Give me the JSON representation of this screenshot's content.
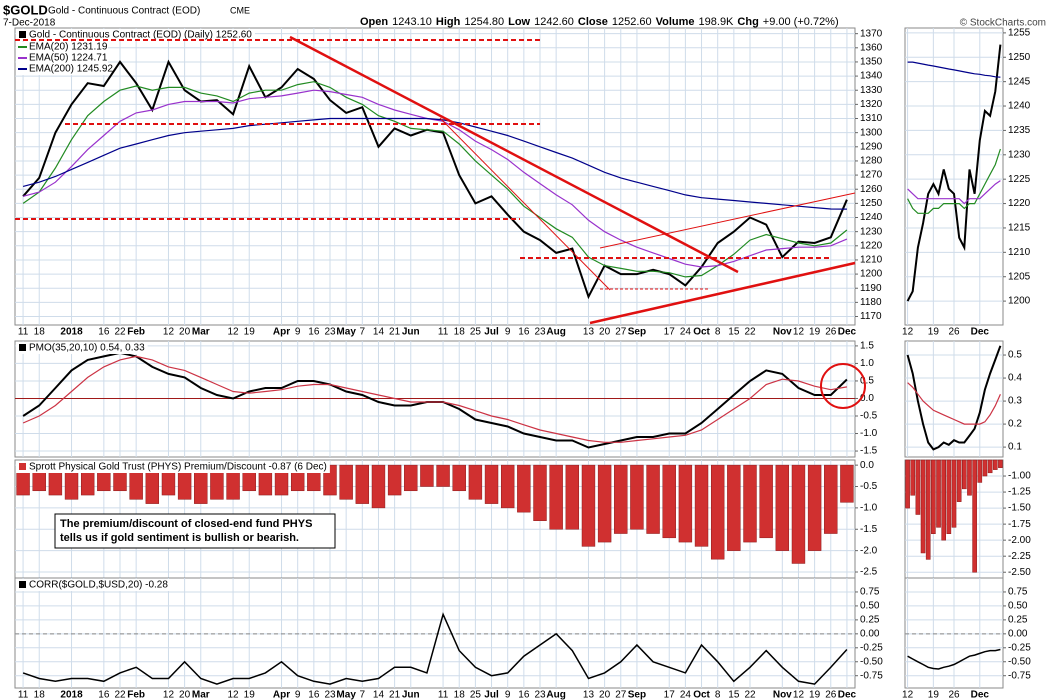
{
  "header": {
    "symbol": "$GOLD",
    "name": "Gold - Continuous Contract (EOD)",
    "exchange": "CME",
    "date": "7-Dec-2018",
    "quote": [
      {
        "label": "Open",
        "value": "1243.10"
      },
      {
        "label": "High",
        "value": "1254.80"
      },
      {
        "label": "Low",
        "value": "1242.60"
      },
      {
        "label": "Close",
        "value": "1252.60"
      },
      {
        "label": "Volume",
        "value": "198.9K"
      },
      {
        "label": "Chg",
        "value": "+9.00 (+0.72%)"
      }
    ],
    "watermark": "© StockCharts.com"
  },
  "chart_data": [
    {
      "type": "line",
      "title": "Gold - Continuous Contract (EOD) (Daily) 1252.60",
      "categories": [
        "11",
        "18",
        null,
        "2018",
        null,
        "16",
        "22",
        "Feb",
        null,
        "12",
        "20",
        "Mar",
        null,
        "12",
        "19",
        null,
        "Apr",
        "9",
        "16",
        "23",
        "May",
        "7",
        "14",
        "21",
        "Jun",
        null,
        "11",
        "18",
        "25",
        "Jul",
        "9",
        "16",
        "23",
        "Aug",
        null,
        "13",
        "20",
        "27",
        "Sep",
        null,
        "17",
        "24",
        "Oct",
        "8",
        "15",
        "22",
        null,
        "Nov",
        "12",
        "19",
        "26",
        "Dec"
      ],
      "series": [
        {
          "color": "#000000",
          "values": [
            1255,
            1268,
            1300,
            1320,
            1335,
            1333,
            1350,
            1335,
            1316,
            1350,
            1330,
            1322,
            1323,
            1313,
            1347,
            1325,
            1332,
            1345,
            1338,
            1323,
            1314,
            1318,
            1290,
            1303,
            1298,
            1302,
            1300,
            1270,
            1250,
            1255,
            1242,
            1230,
            1224,
            1215,
            1218,
            1184,
            1206,
            1200,
            1200,
            1203,
            1200,
            1192,
            1205,
            1222,
            1230,
            1240,
            1235,
            1212,
            1223,
            1222,
            1226,
            1252.6
          ]
        },
        {
          "name": "EMA(20) 1231.19",
          "color": "#228b22",
          "values": [
            1250,
            1258,
            1275,
            1295,
            1312,
            1322,
            1330,
            1333,
            1330,
            1332,
            1332,
            1328,
            1326,
            1322,
            1328,
            1330,
            1330,
            1334,
            1336,
            1332,
            1325,
            1320,
            1312,
            1308,
            1303,
            1302,
            1301,
            1292,
            1280,
            1270,
            1260,
            1248,
            1240,
            1232,
            1226,
            1212,
            1206,
            1204,
            1202,
            1202,
            1201,
            1198,
            1199,
            1206,
            1214,
            1224,
            1228,
            1225,
            1222,
            1220,
            1222,
            1231.19
          ]
        },
        {
          "name": "EMA(50) 1224.71",
          "color": "#9932cc",
          "values": [
            1255,
            1258,
            1265,
            1276,
            1288,
            1298,
            1308,
            1314,
            1316,
            1320,
            1322,
            1322,
            1322,
            1321,
            1324,
            1325,
            1326,
            1328,
            1330,
            1329,
            1327,
            1325,
            1320,
            1316,
            1313,
            1310,
            1308,
            1302,
            1294,
            1288,
            1281,
            1272,
            1264,
            1256,
            1249,
            1238,
            1230,
            1224,
            1219,
            1215,
            1211,
            1207,
            1205,
            1206,
            1209,
            1213,
            1217,
            1218,
            1219,
            1219,
            1220,
            1224.71
          ]
        },
        {
          "name": "EMA(200) 1245.92",
          "color": "#00008b",
          "values": [
            1262,
            1265,
            1269,
            1274,
            1279,
            1284,
            1289,
            1292,
            1295,
            1298,
            1300,
            1301,
            1302,
            1303,
            1305,
            1306,
            1307,
            1308,
            1309,
            1310,
            1310,
            1310,
            1310,
            1310,
            1310,
            1310,
            1309,
            1307,
            1304,
            1301,
            1298,
            1294,
            1290,
            1286,
            1282,
            1277,
            1272,
            1268,
            1265,
            1262,
            1259,
            1256,
            1254,
            1253,
            1252,
            1251,
            1250,
            1249,
            1248,
            1247,
            1246,
            1245.92
          ]
        }
      ],
      "ylim": [
        1164,
        1374
      ],
      "yticks": [
        1170,
        1180,
        1190,
        1200,
        1210,
        1220,
        1230,
        1240,
        1250,
        1260,
        1270,
        1280,
        1290,
        1300,
        1310,
        1320,
        1330,
        1340,
        1350,
        1360,
        1370
      ],
      "grid": true
    },
    {
      "type": "line",
      "title": "PMO(35,20,10) 0.54, 0.33",
      "series": [
        {
          "color": "#000000",
          "values": [
            -0.5,
            -0.2,
            0.3,
            0.8,
            1.1,
            1.2,
            1.3,
            1.2,
            0.9,
            0.7,
            0.6,
            0.3,
            0.1,
            0.0,
            0.2,
            0.3,
            0.3,
            0.5,
            0.5,
            0.4,
            0.2,
            0.1,
            -0.1,
            -0.2,
            -0.2,
            -0.1,
            -0.1,
            -0.3,
            -0.6,
            -0.7,
            -0.8,
            -1.0,
            -1.1,
            -1.2,
            -1.2,
            -1.4,
            -1.3,
            -1.2,
            -1.1,
            -1.1,
            -1.0,
            -1.0,
            -0.7,
            -0.3,
            0.1,
            0.5,
            0.8,
            0.7,
            0.3,
            0.1,
            0.1,
            0.54
          ]
        },
        {
          "color": "#cc3344",
          "values": [
            -0.7,
            -0.5,
            -0.2,
            0.2,
            0.6,
            0.9,
            1.1,
            1.2,
            1.1,
            0.9,
            0.8,
            0.6,
            0.4,
            0.2,
            0.15,
            0.2,
            0.25,
            0.35,
            0.4,
            0.4,
            0.3,
            0.2,
            0.1,
            0.0,
            -0.1,
            -0.1,
            -0.1,
            -0.2,
            -0.35,
            -0.5,
            -0.6,
            -0.75,
            -0.9,
            -1.0,
            -1.1,
            -1.2,
            -1.25,
            -1.25,
            -1.2,
            -1.15,
            -1.1,
            -1.05,
            -0.9,
            -0.6,
            -0.3,
            0.0,
            0.4,
            0.55,
            0.5,
            0.35,
            0.25,
            0.33
          ]
        }
      ],
      "ylim": [
        -1.67,
        1.64
      ],
      "yticks": [
        1.5,
        {
          "value": 1,
          "label": "1.0"
        },
        0.5,
        {
          "value": 0,
          "label": "0.0"
        },
        -0.5,
        {
          "value": -1,
          "label": "-1.0"
        },
        -1.5
      ],
      "grid": true,
      "zero_line_color": "#a01818"
    },
    {
      "type": "bar",
      "title": "Sprott Physical Gold Trust (PHYS) Premium/Discount -0.87 (6 Dec)",
      "color": "#d03030",
      "values": [
        -0.7,
        -0.6,
        -0.7,
        -0.8,
        -0.7,
        -0.6,
        -0.6,
        -0.8,
        -0.9,
        -0.7,
        -0.8,
        -0.9,
        -0.8,
        -0.8,
        -0.6,
        -0.7,
        -0.7,
        -0.6,
        -0.6,
        -0.7,
        -0.8,
        -0.9,
        -1.0,
        -0.7,
        -0.6,
        -0.5,
        -0.5,
        -0.6,
        -0.8,
        -0.9,
        -1.0,
        -1.1,
        -1.3,
        -1.5,
        -1.5,
        -1.9,
        -1.8,
        -1.6,
        -1.5,
        -1.6,
        -1.7,
        -1.8,
        -1.9,
        -2.2,
        -2.0,
        -1.8,
        -1.7,
        -2.0,
        -2.3,
        -2.0,
        -1.6,
        -0.87
      ],
      "ylim": [
        -2.64,
        0.12
      ],
      "yticks": [
        {
          "value": 0,
          "label": "0.0"
        },
        -0.5,
        {
          "value": -1,
          "label": "-1.0"
        },
        -1.5,
        {
          "value": -2,
          "label": "-2.0"
        },
        -2.5
      ],
      "grid": true,
      "annotation": [
        "The premium/discount of closed-end fund PHYS",
        "tells us if gold sentiment is bullish or bearish."
      ]
    },
    {
      "type": "line",
      "title": "CORR($GOLD,$USD,20) -0.28",
      "color": "#000000",
      "categories": [
        "11",
        "18",
        null,
        "2018",
        null,
        "16",
        "22",
        "Feb",
        null,
        "12",
        "20",
        "Mar",
        null,
        "12",
        "19",
        null,
        "Apr",
        "9",
        "16",
        "23",
        "May",
        "7",
        "14",
        "21",
        "Jun",
        null,
        "11",
        "18",
        "25",
        "Jul",
        "9",
        "16",
        "23",
        "Aug",
        null,
        "13",
        "20",
        "27",
        "Sep",
        null,
        "17",
        "24",
        "Oct",
        "8",
        "15",
        "22",
        null,
        "Nov",
        "12",
        "19",
        "26",
        "Dec"
      ],
      "values": [
        -0.7,
        -0.8,
        -0.85,
        -0.8,
        -0.8,
        -0.85,
        -0.7,
        -0.6,
        -0.8,
        -0.8,
        -0.5,
        -0.8,
        -0.9,
        -0.8,
        -0.8,
        -0.7,
        -0.5,
        -0.75,
        -0.85,
        -0.9,
        -0.8,
        -0.85,
        -0.8,
        -0.6,
        -0.6,
        -0.7,
        0.35,
        -0.3,
        -0.6,
        -0.75,
        -0.7,
        -0.4,
        -0.2,
        0.0,
        -0.3,
        -0.8,
        -0.7,
        -0.5,
        -0.2,
        -0.5,
        -0.6,
        -0.7,
        -0.2,
        -0.5,
        -0.85,
        -0.6,
        -0.3,
        -0.6,
        -0.85,
        -0.9,
        -0.6,
        -0.28
      ],
      "ylim": [
        -0.97,
        1.0
      ],
      "yticks": [
        0.75,
        {
          "value": 0.5,
          "label": "0.50"
        },
        0.25,
        {
          "value": 0,
          "label": "0.00"
        },
        -0.25,
        {
          "value": -0.5,
          "label": "-0.50"
        },
        -0.75
      ],
      "grid": true,
      "zero_line_color": "#888888"
    },
    {
      "type": "line",
      "categories": [
        "12",
        null,
        null,
        null,
        null,
        "19",
        null,
        null,
        null,
        "26",
        null,
        null,
        null,
        null,
        "Dec",
        null,
        null,
        null,
        null
      ],
      "series": [
        {
          "color": "#000000",
          "values": [
            1200,
            1202,
            1211,
            1216,
            1222,
            1224,
            1222,
            1227,
            1223,
            1222,
            1213,
            1211,
            1227,
            1222,
            1233,
            1239,
            1238,
            1243,
            1252.6
          ]
        },
        {
          "color": "#228b22",
          "values": [
            1221,
            1219,
            1218,
            1218,
            1218,
            1219,
            1219,
            1220,
            1220,
            1220,
            1220,
            1219,
            1220,
            1220,
            1222,
            1224,
            1226,
            1228,
            1231.19
          ]
        },
        {
          "color": "#9932cc",
          "values": [
            1223,
            1222,
            1221,
            1221,
            1221,
            1221,
            1221,
            1221,
            1221,
            1221,
            1221,
            1220,
            1221,
            1221,
            1221,
            1222,
            1223,
            1224,
            1224.71
          ]
        },
        {
          "color": "#00008b",
          "values": [
            1249,
            1249,
            1248.8,
            1248.6,
            1248.4,
            1248.2,
            1248,
            1247.8,
            1247.6,
            1247.4,
            1247.2,
            1247,
            1246.8,
            1246.6,
            1246.5,
            1246.3,
            1246.2,
            1246,
            1245.92
          ]
        }
      ],
      "ylim": [
        1195.1,
        1256
      ],
      "yticks": [
        1200,
        1205,
        1210,
        1215,
        1220,
        1225,
        1230,
        1235,
        1240,
        1245,
        1250,
        1255
      ],
      "grid": true
    },
    {
      "type": "line",
      "series": [
        {
          "color": "#000000",
          "values": [
            0.5,
            0.42,
            0.3,
            0.2,
            0.12,
            0.09,
            0.1,
            0.12,
            0.11,
            0.13,
            0.12,
            0.12,
            0.15,
            0.18,
            0.25,
            0.35,
            0.42,
            0.48,
            0.54
          ]
        },
        {
          "color": "#cc3344",
          "values": [
            0.38,
            0.36,
            0.33,
            0.3,
            0.28,
            0.26,
            0.25,
            0.24,
            0.23,
            0.22,
            0.21,
            0.2,
            0.2,
            0.2,
            0.2,
            0.21,
            0.24,
            0.28,
            0.33
          ]
        }
      ],
      "ylim": [
        0.057,
        0.561
      ],
      "yticks": [
        0.5,
        0.4,
        0.3,
        0.2,
        0.1
      ],
      "grid": true
    },
    {
      "type": "bar",
      "color": "#d03030",
      "values": [
        -1.5,
        -1.3,
        -1.6,
        -2.2,
        -2.3,
        -1.9,
        -1.8,
        -2.0,
        -1.9,
        -1.8,
        -1.4,
        -1.2,
        -1.3,
        -2.5,
        -1.1,
        -1.0,
        -0.95,
        -0.9,
        -0.87
      ],
      "ylim": [
        -2.59,
        -0.75
      ],
      "yticks": [
        {
          "value": -1,
          "label": "-1.00"
        },
        -1.25,
        {
          "value": -1.5,
          "label": "-1.50"
        },
        -1.75,
        {
          "value": -2,
          "label": "-2.00"
        },
        -2.25,
        {
          "value": -2.5,
          "label": "-2.50"
        }
      ],
      "grid": true
    },
    {
      "type": "line",
      "color": "#000000",
      "categories": [
        "12",
        null,
        null,
        null,
        null,
        "19",
        null,
        null,
        null,
        "26",
        null,
        null,
        null,
        null,
        "Dec",
        null,
        null,
        null,
        null
      ],
      "values": [
        -0.4,
        -0.45,
        -0.5,
        -0.55,
        -0.6,
        -0.62,
        -0.63,
        -0.6,
        -0.58,
        -0.55,
        -0.5,
        -0.45,
        -0.4,
        -0.38,
        -0.35,
        -0.32,
        -0.3,
        -0.3,
        -0.28
      ],
      "ylim": [
        -0.97,
        1.0
      ],
      "yticks": [
        0.75,
        {
          "value": 0.5,
          "label": "0.50"
        },
        0.25,
        {
          "value": 0,
          "label": "0.00"
        },
        -0.25,
        {
          "value": -0.5,
          "label": "-0.50"
        },
        -0.75
      ],
      "grid": true,
      "zero_line_color": "#888888"
    }
  ]
}
